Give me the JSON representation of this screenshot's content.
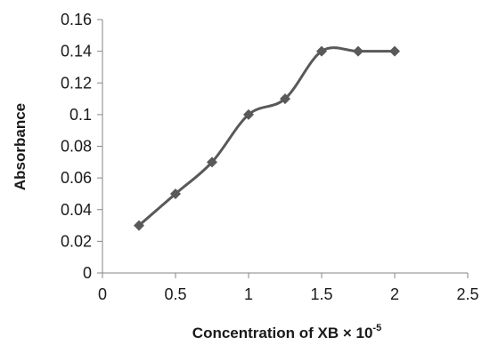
{
  "chart_data": {
    "type": "line",
    "title": "",
    "xlabel": "Concentration of XB × 10",
    "xlabel_superscript": "-5",
    "ylabel": "Absorbance",
    "xlim": [
      0,
      2.5
    ],
    "ylim": [
      0,
      0.16
    ],
    "x_ticks": [
      "0",
      "0.5",
      "1",
      "1.5",
      "2",
      "2.5"
    ],
    "y_ticks": [
      "0",
      "0.02",
      "0.04",
      "0.06",
      "0.08",
      "0.1",
      "0.12",
      "0.14",
      "0.16"
    ],
    "grid": false,
    "legend": "none",
    "series": [
      {
        "x": [
          0.25,
          0.5,
          0.75,
          1.0,
          1.25,
          1.5,
          1.75,
          2.0
        ],
        "values": [
          0.03,
          0.05,
          0.07,
          0.1,
          0.11,
          0.14,
          0.14,
          0.14
        ],
        "color": "#595959",
        "marker": "diamond",
        "smooth": true
      }
    ]
  }
}
